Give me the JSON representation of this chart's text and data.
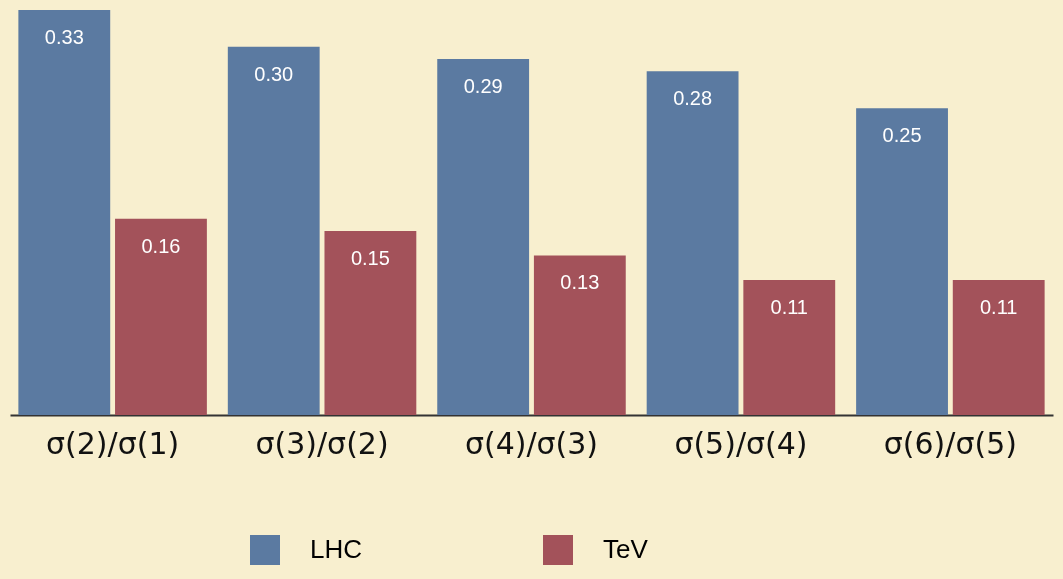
{
  "chart_data": {
    "type": "bar",
    "categories": [
      "σ(2)/σ(1)",
      "σ(3)/σ(2)",
      "σ(4)/σ(3)",
      "σ(5)/σ(4)",
      "σ(6)/σ(5)"
    ],
    "series": [
      {
        "name": "LHC",
        "color": "#5b7aa1",
        "values": [
          0.33,
          0.3,
          0.29,
          0.28,
          0.25
        ],
        "value_labels": [
          "0.33",
          "0.30",
          "0.29",
          "0.28",
          "0.25"
        ]
      },
      {
        "name": "TeV",
        "color": "#a3525a",
        "values": [
          0.16,
          0.15,
          0.13,
          0.11,
          0.11
        ],
        "value_labels": [
          "0.16",
          "0.15",
          "0.13",
          "0.11",
          "0.11"
        ]
      }
    ],
    "grid": false,
    "legend": "bottom"
  }
}
